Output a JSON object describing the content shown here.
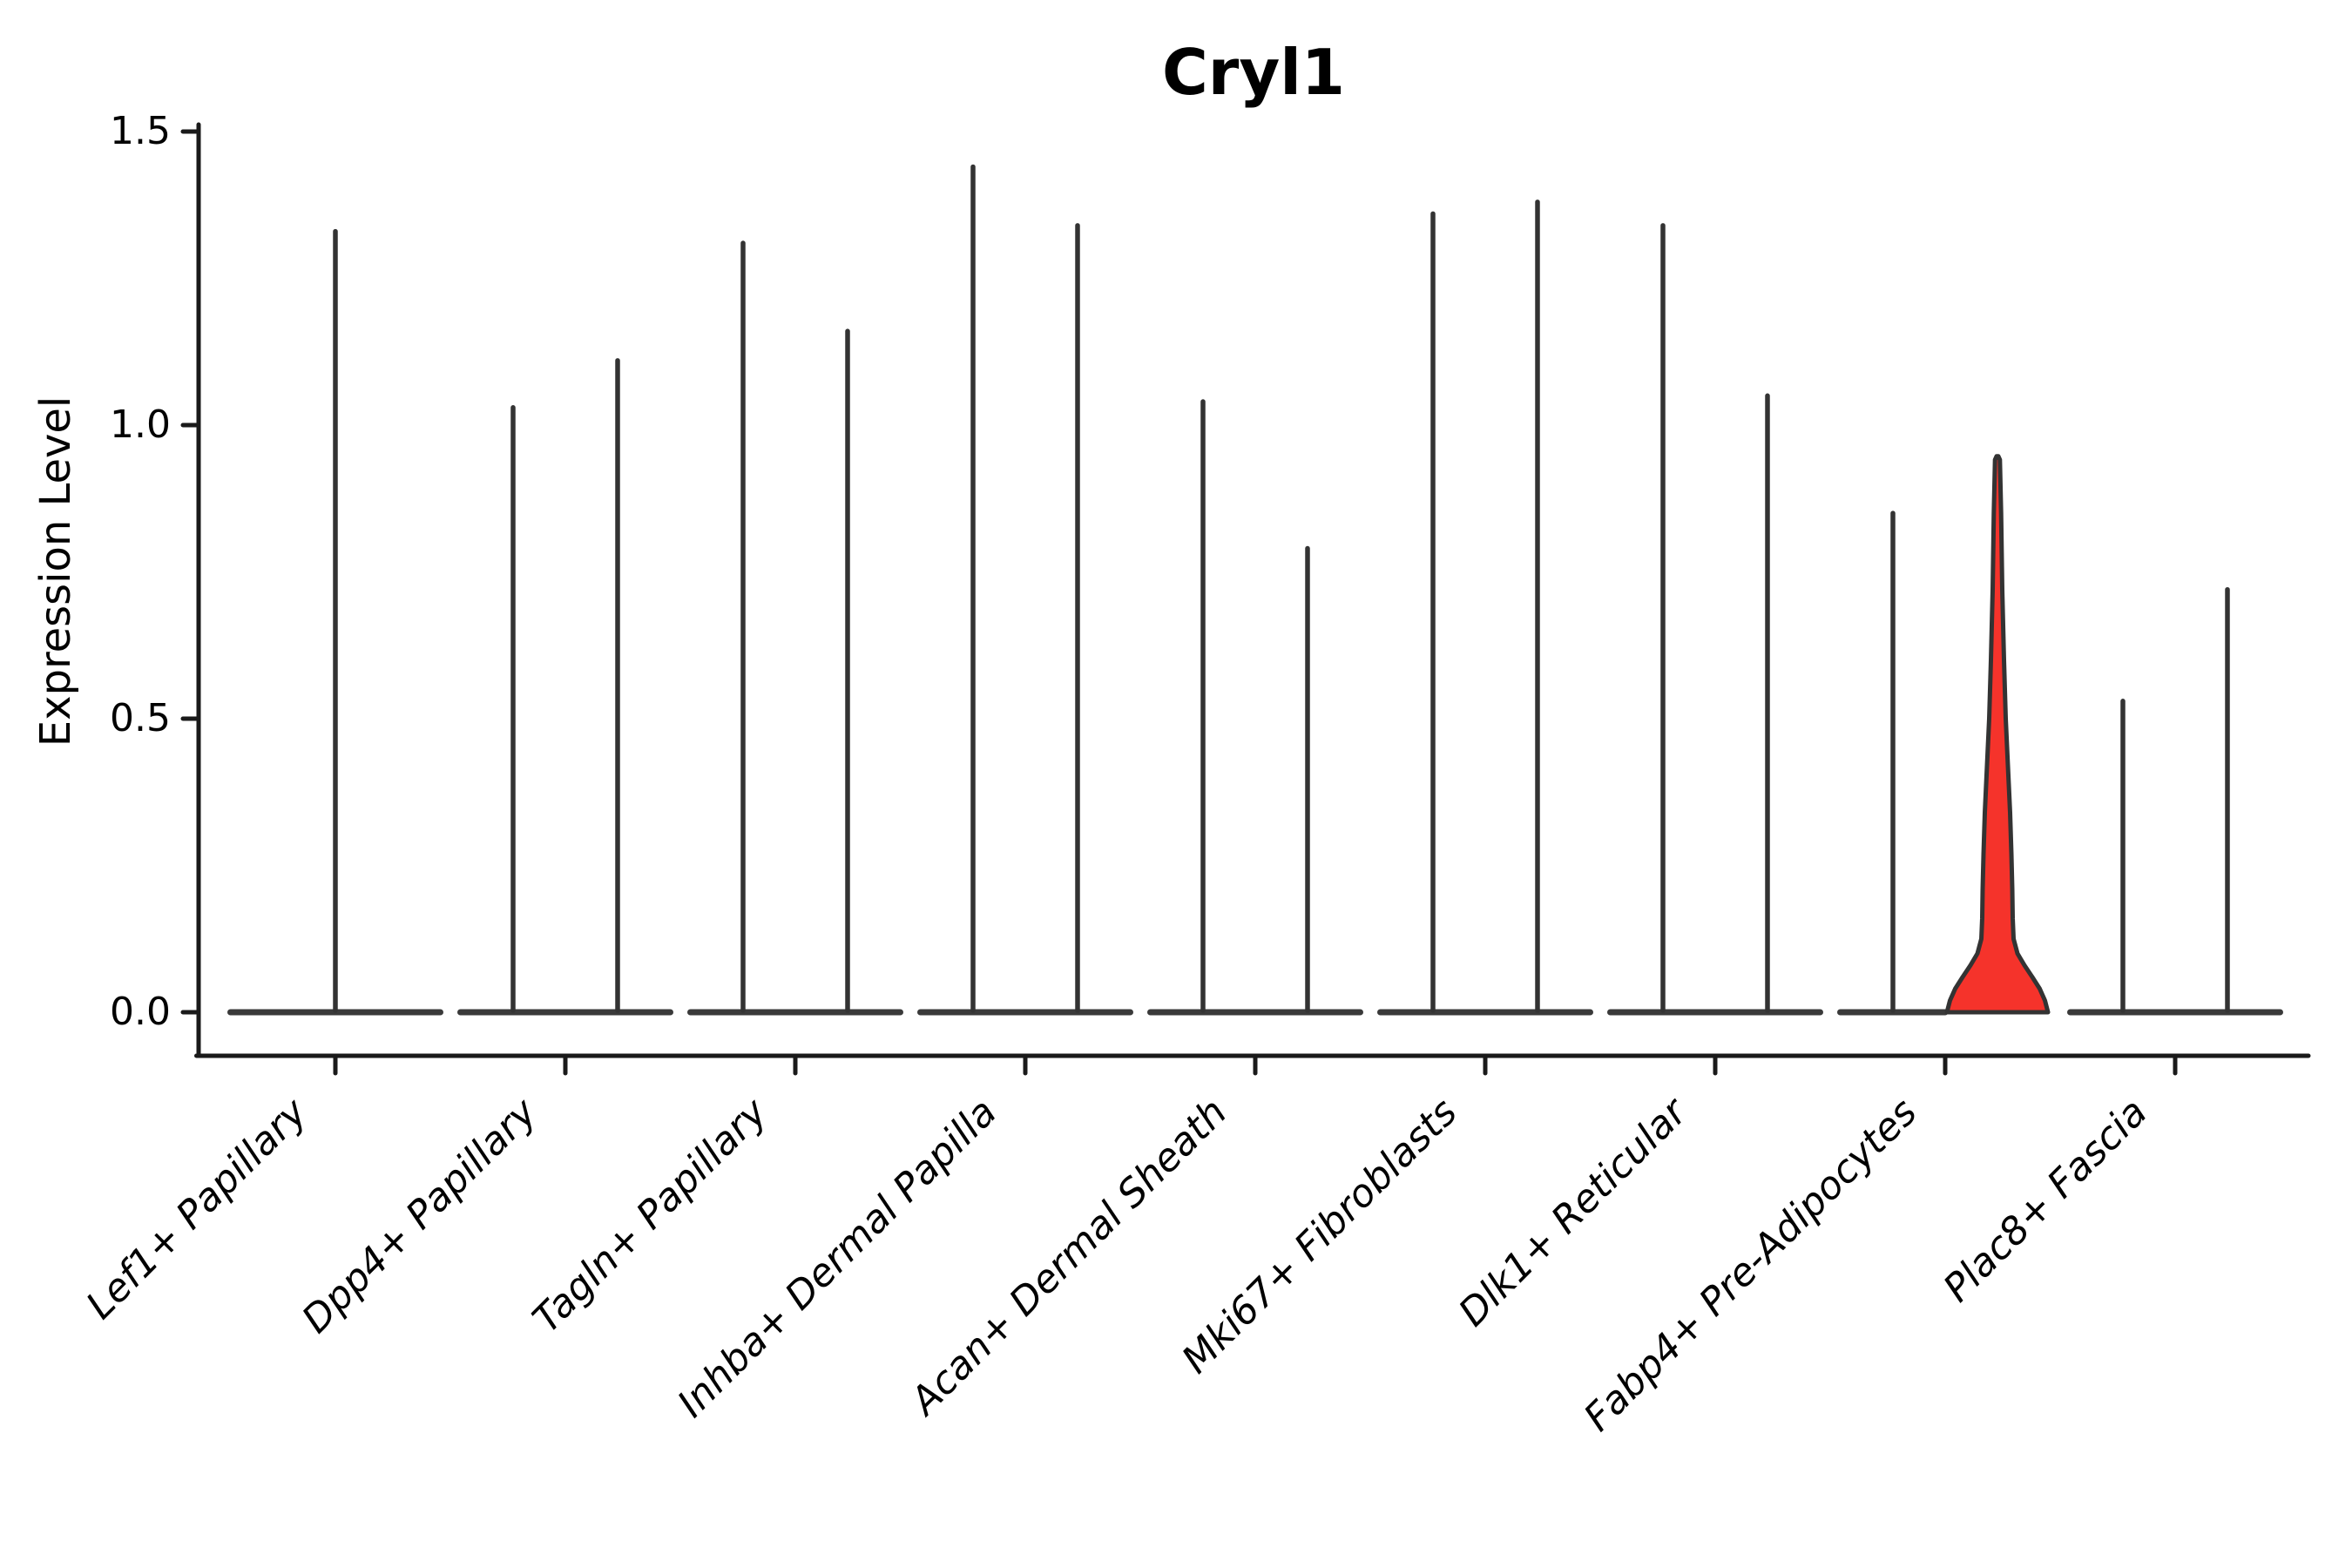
{
  "chart_data": {
    "type": "violin",
    "title": "Cryl1",
    "ylabel": "Expression Level",
    "xlabel": "",
    "grid": false,
    "legend_position": "none",
    "ylim": [
      0,
      1.5
    ],
    "yticks": [
      {
        "value": 1.5,
        "label": "1.5"
      },
      {
        "value": 1.0,
        "label": "1.0"
      },
      {
        "value": 0.5,
        "label": "0.5"
      },
      {
        "value": 0.0,
        "label": "0.0"
      }
    ],
    "categories": [
      "Lef1+ Papillary",
      "Dpp4+ Papillary",
      "Tagln+ Papillary",
      "Inhba+ Dermal Papilla",
      "Acan+ Dermal Sheath",
      "Mki67+ Fibroblasts",
      "Dlk1+ Reticular",
      "Fabp4+ Pre-Adipocytes",
      "Plac8+ Fascia"
    ],
    "groups": [
      {
        "category": "Lef1+ Papillary",
        "violins": [
          {
            "side": "full",
            "max": 1.33,
            "highlighted": false
          }
        ]
      },
      {
        "category": "Dpp4+ Papillary",
        "violins": [
          {
            "side": "left",
            "max": 1.03,
            "highlighted": false
          },
          {
            "side": "right",
            "max": 1.11,
            "highlighted": false
          }
        ]
      },
      {
        "category": "Tagln+ Papillary",
        "violins": [
          {
            "side": "left",
            "max": 1.31,
            "highlighted": false
          },
          {
            "side": "right",
            "max": 1.16,
            "highlighted": false
          }
        ]
      },
      {
        "category": "Inhba+ Dermal Papilla",
        "violins": [
          {
            "side": "left",
            "max": 1.44,
            "highlighted": false
          },
          {
            "side": "right",
            "max": 1.34,
            "highlighted": false
          }
        ]
      },
      {
        "category": "Acan+ Dermal Sheath",
        "violins": [
          {
            "side": "left",
            "max": 1.04,
            "highlighted": false
          },
          {
            "side": "right",
            "max": 0.79,
            "highlighted": false
          }
        ]
      },
      {
        "category": "Mki67+ Fibroblasts",
        "violins": [
          {
            "side": "left",
            "max": 1.36,
            "highlighted": false
          },
          {
            "side": "right",
            "max": 1.38,
            "highlighted": false
          }
        ]
      },
      {
        "category": "Dlk1+ Reticular",
        "violins": [
          {
            "side": "left",
            "max": 1.34,
            "highlighted": false
          },
          {
            "side": "right",
            "max": 1.05,
            "highlighted": false
          }
        ]
      },
      {
        "category": "Fabp4+ Pre-Adipocytes",
        "violins": [
          {
            "side": "left",
            "max": 0.85,
            "highlighted": false
          },
          {
            "side": "right",
            "max": 0.94,
            "highlighted": true,
            "profile": [
              [
                0.947,
                1
              ],
              [
                0.941,
                2.8
              ],
              [
                0.85,
                4.2
              ],
              [
                0.72,
                5.5
              ],
              [
                0.6,
                7.5
              ],
              [
                0.5,
                9.5
              ],
              [
                0.42,
                12
              ],
              [
                0.34,
                14.5
              ],
              [
                0.27,
                16
              ],
              [
                0.21,
                17
              ],
              [
                0.16,
                17.5
              ],
              [
                0.125,
                18.5
              ],
              [
                0.1,
                23
              ],
              [
                0.08,
                31
              ],
              [
                0.06,
                40
              ],
              [
                0.04,
                48.5
              ],
              [
                0.02,
                54.5
              ],
              [
                0.0,
                58
              ]
            ]
          }
        ]
      },
      {
        "category": "Plac8+ Fascia",
        "violins": [
          {
            "side": "left",
            "max": 0.53,
            "highlighted": false
          },
          {
            "side": "right",
            "max": 0.72,
            "highlighted": false
          }
        ]
      }
    ],
    "colors": {
      "violin_line": "#333333",
      "baseline": "#3a3a3a",
      "highlight_fill": "#f5332b",
      "highlight_outline": "#333333",
      "axis": "#1a1a1a",
      "text": "#000000",
      "background": "#ffffff"
    }
  }
}
